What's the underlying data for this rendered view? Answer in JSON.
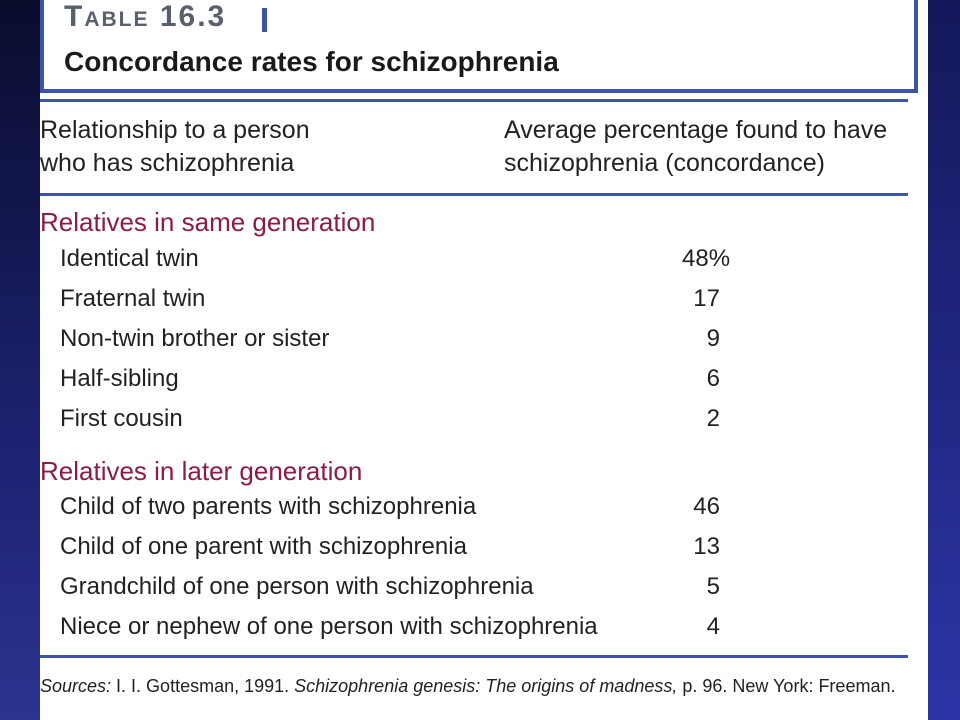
{
  "table": {
    "number": "Table 16.3",
    "title": "Concordance rates for schizophrenia"
  },
  "columns": {
    "left_line1": "Relationship to a person",
    "left_line2": "who has schizophrenia",
    "right_line1": "Average percentage found to have",
    "right_line2": "schizophrenia (concordance)"
  },
  "groups": [
    {
      "heading": "Relatives in same generation",
      "rows": [
        {
          "label": "Identical twin",
          "value": "48%"
        },
        {
          "label": "Fraternal twin",
          "value": "17"
        },
        {
          "label": "Non-twin brother or sister",
          "value": "9"
        },
        {
          "label": "Half-sibling",
          "value": "6"
        },
        {
          "label": "First cousin",
          "value": "2"
        }
      ]
    },
    {
      "heading": "Relatives in later generation",
      "rows": [
        {
          "label": "Child of two parents with schizophrenia",
          "value": "46"
        },
        {
          "label": "Child of one parent with schizophrenia",
          "value": "13"
        },
        {
          "label": "Grandchild of one person with schizophrenia",
          "value": "5"
        },
        {
          "label": "Niece or nephew of one person with schizophrenia",
          "value": "4"
        }
      ]
    }
  ],
  "sources": {
    "label": "Sources:",
    "author": " I. I. Gottesman, 1991. ",
    "book": "Schizophrenia genesis: The origins of madness,",
    "rest": " p. 96. New York: Freeman."
  },
  "colors": {
    "accent_blue": "#3d55a8",
    "group_heading": "#8a1c46"
  }
}
